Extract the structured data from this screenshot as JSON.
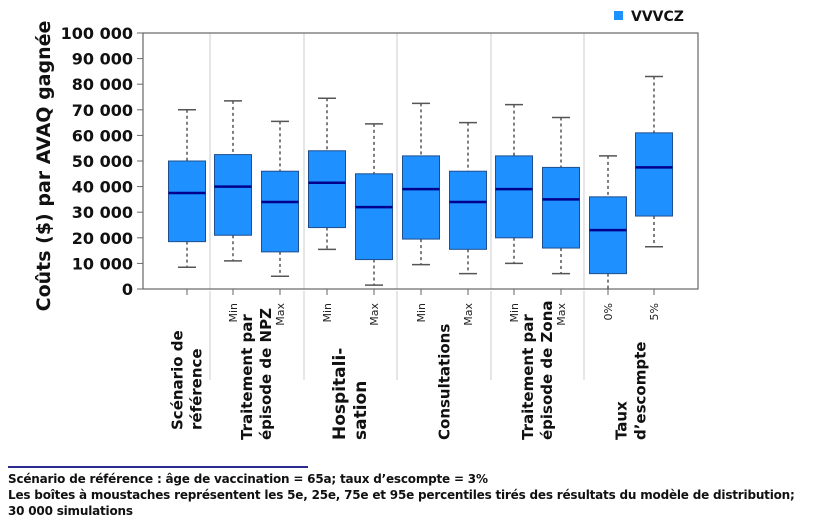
{
  "chart_data": {
    "type": "boxplot",
    "ylabel": "Coûts ($) par AVAQ gagnée",
    "ylim": [
      0,
      100000
    ],
    "yticks": [
      0,
      10000,
      20000,
      30000,
      40000,
      50000,
      60000,
      70000,
      80000,
      90000,
      100000
    ],
    "ytick_labels": [
      "0",
      "10 000",
      "20 000",
      "30 000",
      "40 000",
      "50 000",
      "60 000",
      "70 000",
      "80 000",
      "90 000",
      "100 000"
    ],
    "legend": {
      "position": "top-right",
      "entries": [
        {
          "name": "VVVCZ",
          "color": "#1e90ff"
        }
      ]
    },
    "colors": {
      "box_fill": "#1e90ff",
      "box_stroke": "#1f4f8f",
      "median": "#00008b",
      "whisker": "#555555",
      "axis": "#666666",
      "separator": "#cccccc"
    },
    "groups": [
      {
        "label_lines": [
          "Scénario de",
          "référence"
        ],
        "big": false,
        "boxes": [
          {
            "sublabel": "",
            "p5": 8500,
            "q1": 18500,
            "median": 37500,
            "q3": 50000,
            "p95": 70000
          }
        ]
      },
      {
        "label_lines": [
          "Traitement par",
          "épisode de NPZ"
        ],
        "big": false,
        "boxes": [
          {
            "sublabel": "Min",
            "p5": 11000,
            "q1": 21000,
            "median": 40000,
            "q3": 52500,
            "p95": 73500
          },
          {
            "sublabel": "Max",
            "p5": 5000,
            "q1": 14500,
            "median": 34000,
            "q3": 46000,
            "p95": 65500
          }
        ]
      },
      {
        "label_lines": [
          "Hospitali-",
          "sation"
        ],
        "big": true,
        "boxes": [
          {
            "sublabel": "Min",
            "p5": 15500,
            "q1": 24000,
            "median": 41500,
            "q3": 54000,
            "p95": 74500
          },
          {
            "sublabel": "Max",
            "p5": 1500,
            "q1": 11500,
            "median": 32000,
            "q3": 45000,
            "p95": 64500
          }
        ]
      },
      {
        "label_lines": [
          "Consultations"
        ],
        "big": false,
        "boxes": [
          {
            "sublabel": "Min",
            "p5": 9500,
            "q1": 19500,
            "median": 39000,
            "q3": 52000,
            "p95": 72500
          },
          {
            "sublabel": "Max",
            "p5": 6000,
            "q1": 15500,
            "median": 34000,
            "q3": 46000,
            "p95": 65000
          }
        ]
      },
      {
        "label_lines": [
          "Traitement par",
          "épisode de Zona"
        ],
        "big": false,
        "boxes": [
          {
            "sublabel": "Min",
            "p5": 10000,
            "q1": 20000,
            "median": 39000,
            "q3": 52000,
            "p95": 72000
          },
          {
            "sublabel": "Max",
            "p5": 6000,
            "q1": 16000,
            "median": 35000,
            "q3": 47500,
            "p95": 67000
          }
        ]
      },
      {
        "label_lines": [
          "Taux",
          "d’escompte"
        ],
        "big": false,
        "boxes": [
          {
            "sublabel": "0%",
            "p5": 0,
            "q1": 6000,
            "median": 23000,
            "q3": 36000,
            "p95": 52000
          },
          {
            "sublabel": "5%",
            "p5": 16500,
            "q1": 28500,
            "median": 47500,
            "q3": 61000,
            "p95": 83000
          }
        ]
      }
    ]
  },
  "notes": {
    "line1": "Scénario de référence : âge de vaccination = 65a; taux d’escompte = 3%",
    "line2": "Les boîtes à moustaches représentent les 5e, 25e, 75e et 95e percentiles tirés des résultats du modèle de distribution;",
    "line3": "30 000 simulations"
  }
}
